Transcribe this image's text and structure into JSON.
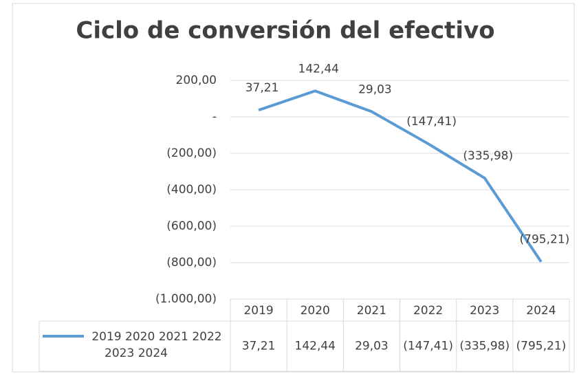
{
  "chart_data": {
    "type": "line",
    "title": "Ciclo de conversión del efectivo",
    "categories": [
      "2019",
      "2020",
      "2021",
      "2022",
      "2023",
      "2024"
    ],
    "series": [
      {
        "name": "2019 2020 2021 2022 2023 2024",
        "color": "#5b9bd5",
        "values": [
          37.21,
          142.44,
          29.03,
          -147.41,
          -335.98,
          -795.21
        ],
        "value_labels": [
          "37,21",
          "142,44",
          "29,03",
          "(147,41)",
          "(335,98)",
          "(795,21)"
        ]
      }
    ],
    "ylim": [
      -1000,
      200
    ],
    "yticks": [
      {
        "value": 200,
        "label": "200,00"
      },
      {
        "value": 0,
        "label": "-"
      },
      {
        "value": -200,
        "label": "(200,00)"
      },
      {
        "value": -400,
        "label": "(400,00)"
      },
      {
        "value": -600,
        "label": "(600,00)"
      },
      {
        "value": -800,
        "label": "(800,00)"
      },
      {
        "value": -1000,
        "label": "(1.000,00)"
      }
    ],
    "grid": true,
    "data_table": true
  }
}
